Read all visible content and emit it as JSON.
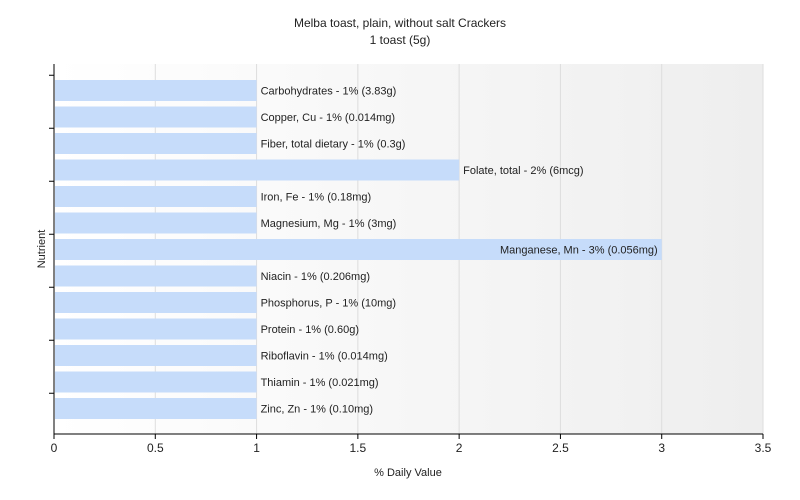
{
  "chart_data": {
    "type": "bar",
    "orientation": "horizontal",
    "title": "Melba toast, plain, without salt Crackers",
    "subtitle": "1 toast (5g)",
    "xlabel": "% Daily Value",
    "ylabel": "Nutrient",
    "xlim": [
      0,
      3.5
    ],
    "xticks": [
      "0",
      "0.5",
      "1",
      "1.5",
      "2",
      "2.5",
      "3",
      "3.5"
    ],
    "grid": true,
    "bar_color": "#c6dcfa",
    "categories": [
      "Carbohydrates",
      "Copper, Cu",
      "Fiber, total dietary",
      "Folate, total",
      "Iron, Fe",
      "Magnesium, Mg",
      "Manganese, Mn",
      "Niacin",
      "Phosphorus, P",
      "Protein",
      "Riboflavin",
      "Thiamin",
      "Zinc, Zn"
    ],
    "values": [
      1,
      1,
      1,
      2,
      1,
      1,
      3,
      1,
      1,
      1,
      1,
      1,
      1
    ],
    "labels": [
      "Carbohydrates - 1% (3.83g)",
      "Copper, Cu - 1% (0.014mg)",
      "Fiber, total dietary - 1% (0.3g)",
      "Folate, total - 2% (6mcg)",
      "Iron, Fe - 1% (0.18mg)",
      "Magnesium, Mg - 1% (3mg)",
      "Manganese, Mn - 3% (0.056mg)",
      "Niacin - 1% (0.206mg)",
      "Phosphorus, P - 1% (10mg)",
      "Protein - 1% (0.60g)",
      "Riboflavin - 1% (0.014mg)",
      "Thiamin - 1% (0.021mg)",
      "Zinc, Zn - 1% (0.10mg)"
    ]
  }
}
